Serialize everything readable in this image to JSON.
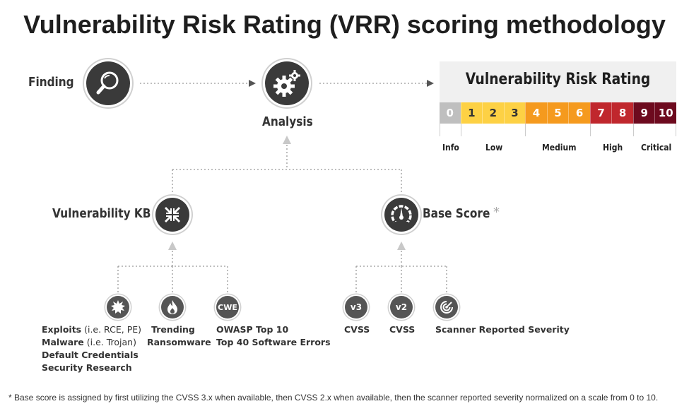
{
  "title": "Vulnerability Risk Rating (VRR) scoring methodology",
  "flow": {
    "finding_label": "Finding",
    "analysis_label": "Analysis",
    "vuln_kb_label": "Vulnerability KB",
    "base_score_label": "Base Score",
    "base_score_asterisk": "*"
  },
  "rating": {
    "title": "Vulnerability Risk Rating",
    "cells": [
      {
        "value": "0",
        "color": "#bfbfbf",
        "text_color": "#ffffff"
      },
      {
        "value": "1",
        "color": "#fdd144",
        "text_color": "#333333"
      },
      {
        "value": "2",
        "color": "#fdd144",
        "text_color": "#333333"
      },
      {
        "value": "3",
        "color": "#fdd144",
        "text_color": "#333333"
      },
      {
        "value": "4",
        "color": "#f59a1e",
        "text_color": "#ffffff"
      },
      {
        "value": "5",
        "color": "#f59a1e",
        "text_color": "#ffffff"
      },
      {
        "value": "6",
        "color": "#f59a1e",
        "text_color": "#ffffff"
      },
      {
        "value": "7",
        "color": "#c0272d",
        "text_color": "#ffffff"
      },
      {
        "value": "8",
        "color": "#c0272d",
        "text_color": "#ffffff"
      },
      {
        "value": "9",
        "color": "#6d0a1e",
        "text_color": "#ffffff"
      },
      {
        "value": "10",
        "color": "#6d0a1e",
        "text_color": "#ffffff"
      }
    ],
    "categories": [
      "Info",
      "Low",
      "Medium",
      "High",
      "Critical"
    ]
  },
  "kb_sources": {
    "exploits": {
      "lines": [
        {
          "bold": "Exploits",
          "normal": " (i.e. RCE, PE)"
        },
        {
          "bold": "Malware",
          "normal": " (i.e. Trojan)"
        },
        {
          "bold": "Default Credentials",
          "normal": ""
        },
        {
          "bold": "Security Research",
          "normal": ""
        }
      ]
    },
    "trending": {
      "line1": "Trending",
      "line2": "Ransomware"
    },
    "cwe": {
      "icon_text": "CWE",
      "line1": "OWASP Top 10",
      "line2": "Top 40 Software Errors"
    }
  },
  "score_sources": {
    "v3": {
      "icon_text": "v3",
      "label": "CVSS"
    },
    "v2": {
      "icon_text": "v2",
      "label": "CVSS"
    },
    "scanner": {
      "label": "Scanner Reported Severity"
    }
  },
  "footnote": "* Base score is assigned by first utilizing the CVSS 3.x when available, then CVSS 2.x when available, then the scanner reported severity normalized on a scale from 0 to 10."
}
